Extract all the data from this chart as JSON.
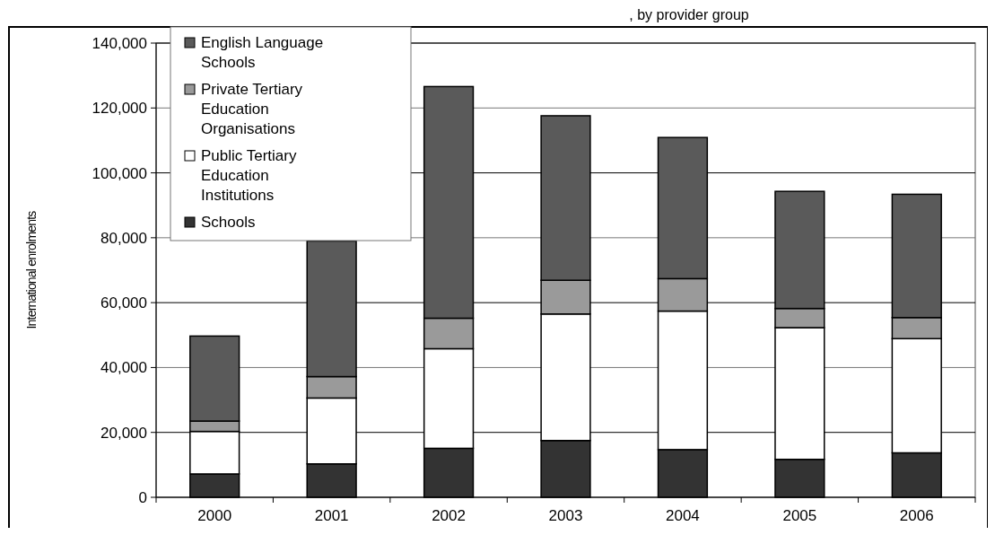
{
  "chart_data": {
    "type": "bar",
    "title": ", by provider group",
    "ylabel": "International enrolments",
    "categories": [
      "2000",
      "2001",
      "2002",
      "2003",
      "2004",
      "2005",
      "2006"
    ],
    "stacked": true,
    "series": [
      {
        "name": "Schools",
        "color": "#333333",
        "values": [
          7200,
          10300,
          15100,
          17500,
          14700,
          11700,
          13700
        ]
      },
      {
        "name": "Public Tertiary Education Institutions",
        "color": "#ffffff",
        "values": [
          13100,
          20300,
          30700,
          39000,
          42700,
          40600,
          35200
        ]
      },
      {
        "name": "Private Tertiary Education Organisations",
        "color": "#9a9a9a",
        "values": [
          3200,
          6600,
          9400,
          10400,
          10000,
          5900,
          6500
        ]
      },
      {
        "name": "English Language Schools",
        "color": "#5a5a5a",
        "values": [
          26200,
          41800,
          71400,
          50700,
          43500,
          36100,
          38000
        ]
      }
    ],
    "ylim": [
      0,
      140000
    ],
    "yticks": [
      {
        "value": 0,
        "label": "0"
      },
      {
        "value": 20000,
        "label": "20,000"
      },
      {
        "value": 40000,
        "label": "40,000"
      },
      {
        "value": 60000,
        "label": "60,000"
      },
      {
        "value": 80000,
        "label": "80,000"
      },
      {
        "value": 100000,
        "label": "100,000"
      },
      {
        "value": 120000,
        "label": "120,000"
      },
      {
        "value": 140000,
        "label": "140,000"
      }
    ],
    "grid": "y",
    "legend": "top left"
  }
}
